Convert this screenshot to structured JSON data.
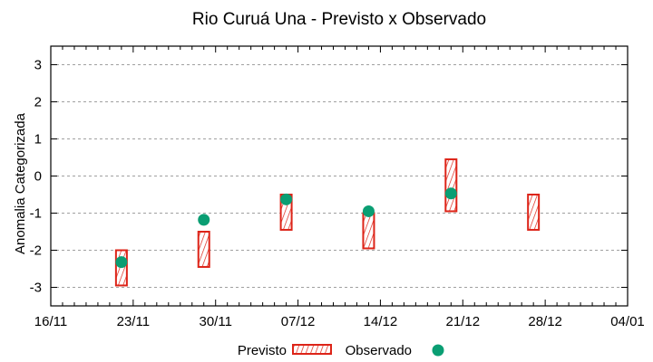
{
  "chart_data": {
    "type": "box-range-with-points",
    "title": "Rio Curuá Una - Previsto x Observado",
    "xlabel": "",
    "ylabel": "Anomalia Categorizada",
    "ylim": [
      -3.5,
      3.5
    ],
    "yticks": [
      3,
      2,
      1,
      0,
      -1,
      -2,
      -3
    ],
    "xticks": [
      "16/11",
      "23/11",
      "30/11",
      "07/12",
      "14/12",
      "21/12",
      "28/12",
      "04/01"
    ],
    "x_range_days": [
      0,
      49
    ],
    "grid": "horizontal dashed",
    "legend_position": "bottom",
    "series": [
      {
        "name": "Previsto",
        "kind": "range-box",
        "color": "#dd2418",
        "points": [
          {
            "x": "22/11",
            "day": 6,
            "low": -2.95,
            "high": -2.0
          },
          {
            "x": "29/11",
            "day": 13,
            "low": -2.45,
            "high": -1.5
          },
          {
            "x": "06/12",
            "day": 20,
            "low": -1.45,
            "high": -0.5
          },
          {
            "x": "13/12",
            "day": 27,
            "low": -1.95,
            "high": -1.0
          },
          {
            "x": "20/12",
            "day": 34,
            "low": -0.95,
            "high": 0.45
          },
          {
            "x": "27/12",
            "day": 41,
            "low": -1.45,
            "high": -0.5
          }
        ]
      },
      {
        "name": "Observado",
        "kind": "point",
        "color": "#0a9e73",
        "points": [
          {
            "x": "22/11",
            "day": 6,
            "y": -2.32
          },
          {
            "x": "29/11",
            "day": 13,
            "y": -1.18
          },
          {
            "x": "06/12",
            "day": 20,
            "y": -0.63
          },
          {
            "x": "13/12",
            "day": 27,
            "y": -0.95
          },
          {
            "x": "20/12",
            "day": 34,
            "y": -0.47
          }
        ]
      }
    ]
  },
  "legend": {
    "previsto_label": "Previsto",
    "observado_label": "Observado"
  }
}
